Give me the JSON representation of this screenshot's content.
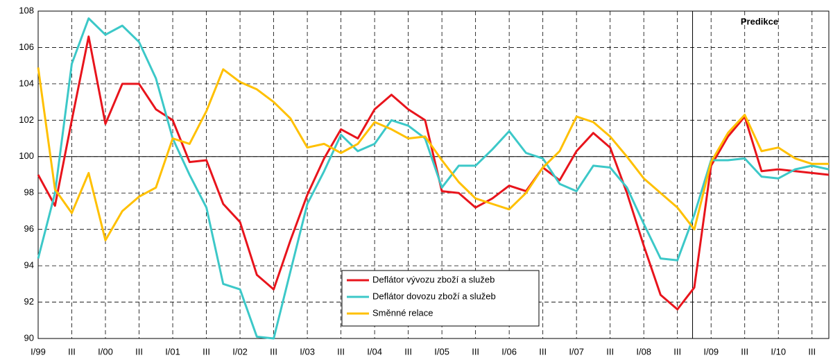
{
  "chart_data": {
    "type": "line",
    "annotation": "Predikce",
    "categories": [
      "I/99",
      null,
      "III",
      null,
      "I/00",
      null,
      "III",
      null,
      "I/01",
      null,
      "III",
      null,
      "I/02",
      null,
      "III",
      null,
      "I/03",
      null,
      "III",
      null,
      "I/04",
      null,
      "III",
      null,
      "I/05",
      null,
      "III",
      null,
      "I/06",
      null,
      "III",
      null,
      "I/07",
      null,
      "III",
      null,
      "I/08",
      null,
      "III",
      null,
      "I/09",
      null,
      "III",
      null,
      "I/10",
      null,
      "III",
      null
    ],
    "series": [
      {
        "name": "Deflátor vývozu zboží a služeb",
        "color": "#e8141c",
        "values": [
          99.0,
          97.3,
          102.0,
          106.6,
          101.8,
          104.0,
          104.0,
          102.6,
          102.0,
          99.7,
          99.8,
          97.4,
          96.4,
          93.5,
          92.7,
          95.4,
          97.9,
          99.9,
          101.5,
          101.0,
          102.6,
          103.4,
          102.6,
          102.0,
          98.1,
          98.0,
          97.2,
          97.7,
          98.4,
          98.1,
          99.4,
          98.7,
          100.3,
          101.3,
          100.5,
          98.0,
          95.1,
          92.4,
          91.6,
          92.8,
          99.5,
          101.1,
          102.2,
          99.2,
          99.3,
          99.2,
          99.1,
          99.0
        ]
      },
      {
        "name": "Deflátor dovozu zboží a služeb",
        "color": "#3cc8c8",
        "values": [
          94.4,
          98.0,
          105.1,
          107.6,
          106.7,
          107.2,
          106.3,
          104.3,
          101.0,
          99.0,
          97.2,
          93.0,
          92.7,
          90.1,
          90.0,
          93.7,
          97.4,
          99.2,
          101.2,
          100.3,
          100.7,
          102.0,
          101.7,
          101.0,
          98.3,
          99.5,
          99.5,
          100.4,
          101.4,
          100.2,
          99.9,
          98.5,
          98.1,
          99.5,
          99.4,
          98.3,
          96.3,
          94.4,
          94.3,
          96.8,
          99.8,
          99.8,
          99.9,
          98.9,
          98.8,
          99.3,
          99.5,
          99.3
        ]
      },
      {
        "name": "Směnné relace",
        "color": "#ffc000",
        "values": [
          104.9,
          98.2,
          96.9,
          99.1,
          95.4,
          97.0,
          97.8,
          98.3,
          101.0,
          100.7,
          102.5,
          104.8,
          104.1,
          103.7,
          103.0,
          102.1,
          100.5,
          100.7,
          100.2,
          100.7,
          101.9,
          101.5,
          101.0,
          101.1,
          99.8,
          98.6,
          97.7,
          97.4,
          97.1,
          98.0,
          99.4,
          100.3,
          102.2,
          101.9,
          101.1,
          100.0,
          98.8,
          98.0,
          97.2,
          96.0,
          99.7,
          101.3,
          102.3,
          100.3,
          100.5,
          99.9,
          99.6,
          99.6
        ]
      }
    ],
    "ylim": [
      90,
      108
    ],
    "yticks": [
      90,
      92,
      94,
      96,
      98,
      100,
      102,
      104,
      106,
      108
    ],
    "baseline": 100,
    "grid": true
  }
}
